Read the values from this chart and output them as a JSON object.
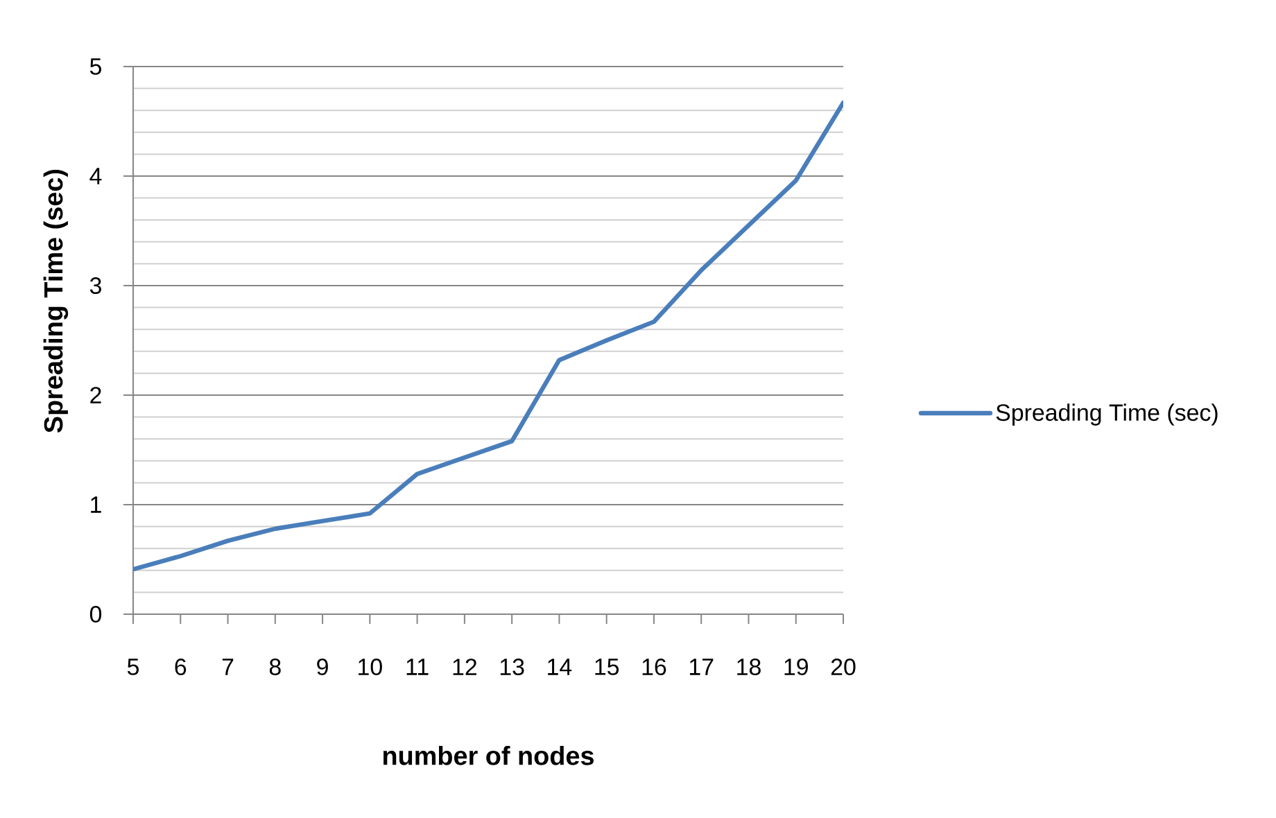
{
  "chart_data": {
    "type": "line",
    "xlabel": "number of nodes",
    "ylabel": "Spreading Time (sec)",
    "categories": [
      "5",
      "6",
      "7",
      "8",
      "9",
      "10",
      "11",
      "12",
      "13",
      "14",
      "15",
      "16",
      "17",
      "18",
      "19",
      "20"
    ],
    "series": [
      {
        "name": "Spreading Time (sec)",
        "color": "#4a7ebb",
        "values": [
          0.41,
          0.53,
          0.67,
          0.78,
          0.85,
          0.92,
          1.28,
          1.43,
          1.58,
          2.32,
          2.5,
          2.67,
          3.14,
          3.55,
          3.96,
          4.67
        ]
      }
    ],
    "ylim": [
      0,
      5
    ],
    "yticks": [
      0,
      {
        "value": 0.2,
        "label": null
      },
      {
        "value": 0.4,
        "label": null
      },
      {
        "value": 0.6,
        "label": null
      },
      {
        "value": 0.8,
        "label": null
      },
      1,
      {
        "value": 1.2,
        "label": null
      },
      {
        "value": 1.4,
        "label": null
      },
      {
        "value": 1.6,
        "label": null
      },
      {
        "value": 1.8,
        "label": null
      },
      2,
      {
        "value": 2.2,
        "label": null
      },
      {
        "value": 2.4,
        "label": null
      },
      {
        "value": 2.6,
        "label": null
      },
      {
        "value": 2.8,
        "label": null
      },
      3,
      {
        "value": 3.2,
        "label": null
      },
      {
        "value": 3.4,
        "label": null
      },
      {
        "value": 3.6,
        "label": null
      },
      {
        "value": 3.8,
        "label": null
      },
      4,
      {
        "value": 4.2,
        "label": null
      },
      {
        "value": 4.4,
        "label": null
      },
      {
        "value": 4.6,
        "label": null
      },
      {
        "value": 4.8,
        "label": null
      },
      5
    ],
    "grid": "y",
    "legend": "right",
    "marker": "none",
    "line_style": "solid"
  }
}
